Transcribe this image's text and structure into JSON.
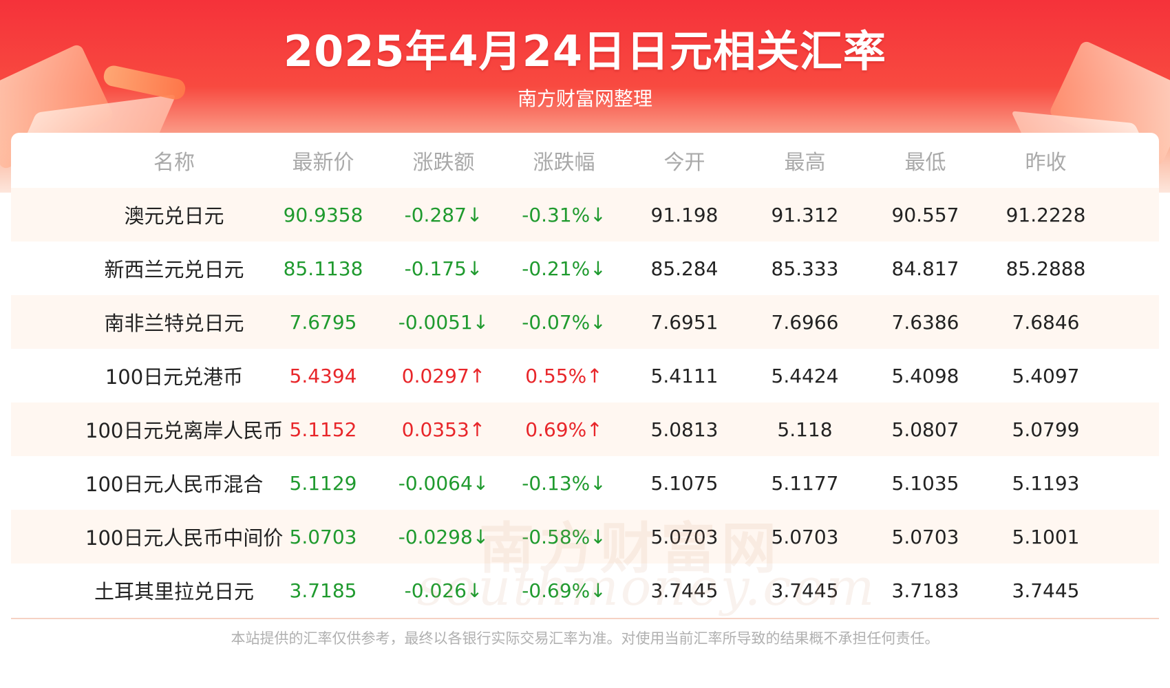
{
  "header": {
    "title": "2025年4月24日日元相关汇率",
    "subtitle": "南方财富网整理"
  },
  "colors": {
    "up": "#e8262a",
    "down": "#1f9a2e",
    "header_red": "#f5323a"
  },
  "table": {
    "columns": [
      "名称",
      "最新价",
      "涨跌额",
      "涨跌幅",
      "今开",
      "最高",
      "最低",
      "昨收"
    ],
    "rows": [
      {
        "name": "澳元兑日元",
        "latest": "90.9358",
        "change": "-0.287↓",
        "pct": "-0.31%↓",
        "open": "91.198",
        "high": "91.312",
        "low": "90.557",
        "prev": "91.2228",
        "dir": "down"
      },
      {
        "name": "新西兰元兑日元",
        "latest": "85.1138",
        "change": "-0.175↓",
        "pct": "-0.21%↓",
        "open": "85.284",
        "high": "85.333",
        "low": "84.817",
        "prev": "85.2888",
        "dir": "down"
      },
      {
        "name": "南非兰特兑日元",
        "latest": "7.6795",
        "change": "-0.0051↓",
        "pct": "-0.07%↓",
        "open": "7.6951",
        "high": "7.6966",
        "low": "7.6386",
        "prev": "7.6846",
        "dir": "down"
      },
      {
        "name": "100日元兑港币",
        "latest": "5.4394",
        "change": "0.0297↑",
        "pct": "0.55%↑",
        "open": "5.4111",
        "high": "5.4424",
        "low": "5.4098",
        "prev": "5.4097",
        "dir": "up"
      },
      {
        "name": "100日元兑离岸人民币",
        "latest": "5.1152",
        "change": "0.0353↑",
        "pct": "0.69%↑",
        "open": "5.0813",
        "high": "5.118",
        "low": "5.0807",
        "prev": "5.0799",
        "dir": "up"
      },
      {
        "name": "100日元人民币混合",
        "latest": "5.1129",
        "change": "-0.0064↓",
        "pct": "-0.13%↓",
        "open": "5.1075",
        "high": "5.1177",
        "low": "5.1035",
        "prev": "5.1193",
        "dir": "down"
      },
      {
        "name": "100日元人民币中间价",
        "latest": "5.0703",
        "change": "-0.0298↓",
        "pct": "-0.58%↓",
        "open": "5.0703",
        "high": "5.0703",
        "low": "5.0703",
        "prev": "5.1001",
        "dir": "down"
      },
      {
        "name": "土耳其里拉兑日元",
        "latest": "3.7185",
        "change": "-0.026↓",
        "pct": "-0.69%↓",
        "open": "3.7445",
        "high": "3.7445",
        "low": "3.7183",
        "prev": "3.7445",
        "dir": "down"
      }
    ]
  },
  "watermark": {
    "line1": "南方财富网",
    "line2": "southmoney.com"
  },
  "footer": {
    "disclaimer": "本站提供的汇率仅供参考，最终以各银行实际交易汇率为准。对使用当前汇率所导致的结果概不承担任何责任。"
  }
}
